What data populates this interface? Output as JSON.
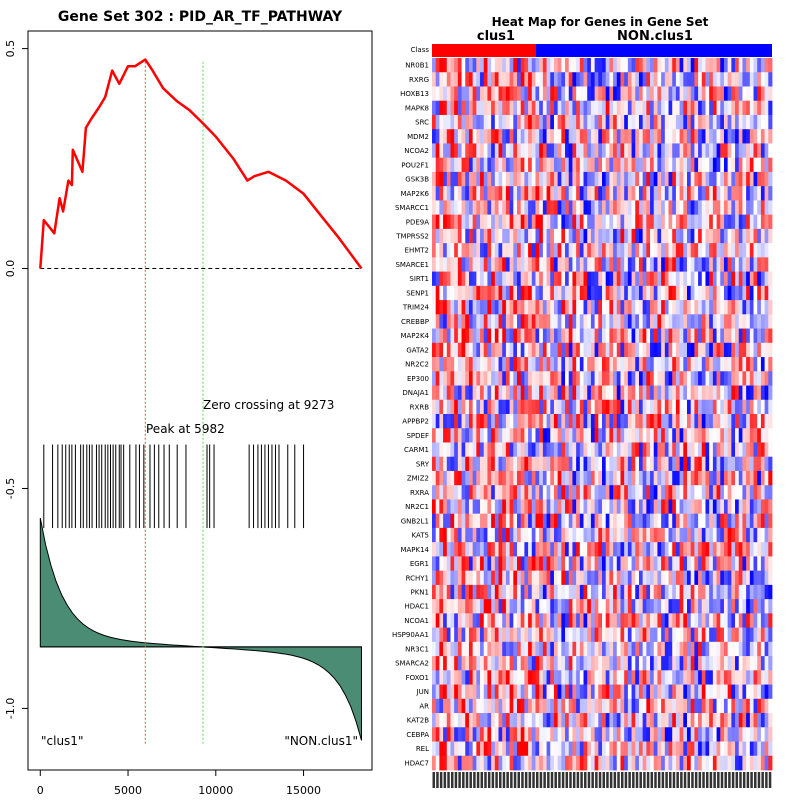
{
  "colors": {
    "es_line": "#ff0000",
    "peak_line": "#e04a4a",
    "zero_line": "#55dd55",
    "metric_fill": "#4a8c74",
    "class_clus1": "#ff0000",
    "class_non": "#0000ff",
    "hm_red": "#ff0000",
    "hm_blue": "#0000ff"
  },
  "chart_data": [
    {
      "type": "line",
      "title": "Gene Set  302 : PID_AR_TF_PATHWAY",
      "x_ticks": [
        0,
        5000,
        10000,
        15000
      ],
      "x_tick_labels": [
        "0",
        "5000",
        "10000",
        "15000"
      ],
      "y_ticks": [
        0.5,
        0.0,
        -0.5,
        -1.0
      ],
      "y_tick_labels": [
        "0.5",
        "0.0",
        "-0.5",
        "-1.0"
      ],
      "xlim": [
        -700,
        18900
      ],
      "ylim": [
        -1.14,
        0.54
      ],
      "es_points": [
        [
          0,
          0
        ],
        [
          200,
          0.11
        ],
        [
          800,
          0.08
        ],
        [
          1100,
          0.16
        ],
        [
          1300,
          0.13
        ],
        [
          1600,
          0.2
        ],
        [
          1800,
          0.19
        ],
        [
          1850,
          0.27
        ],
        [
          2400,
          0.22
        ],
        [
          2600,
          0.32
        ],
        [
          2900,
          0.34
        ],
        [
          3400,
          0.37
        ],
        [
          3700,
          0.39
        ],
        [
          4100,
          0.45
        ],
        [
          4500,
          0.42
        ],
        [
          5000,
          0.46
        ],
        [
          5400,
          0.46
        ],
        [
          5982,
          0.475
        ],
        [
          6400,
          0.45
        ],
        [
          7000,
          0.41
        ],
        [
          7800,
          0.38
        ],
        [
          8500,
          0.36
        ],
        [
          9273,
          0.33
        ],
        [
          10000,
          0.3
        ],
        [
          11000,
          0.25
        ],
        [
          11800,
          0.2
        ],
        [
          12200,
          0.21
        ],
        [
          13000,
          0.22
        ],
        [
          14000,
          0.2
        ],
        [
          15000,
          0.17
        ],
        [
          16000,
          0.12
        ],
        [
          17000,
          0.07
        ],
        [
          18300,
          0
        ]
      ],
      "peak": {
        "x": 5982,
        "label": "Peak at 5982"
      },
      "zero_crossing": {
        "x": 9273,
        "label": "Zero crossing at 9273"
      },
      "hits": [
        200,
        700,
        1000,
        1250,
        1450,
        1650,
        1800,
        2000,
        2300,
        2450,
        2650,
        2800,
        2950,
        3200,
        3350,
        3500,
        3700,
        3850,
        4000,
        4150,
        4300,
        4500,
        4600,
        4750,
        5100,
        5450,
        5650,
        5900,
        6250,
        6500,
        6750,
        7050,
        7350,
        7800,
        8300,
        9500,
        9650,
        9900,
        11900,
        12150,
        12400,
        12600,
        12800,
        13000,
        13200,
        13400,
        13600,
        14100,
        14500,
        15000
      ],
      "hits_y_range": [
        -0.4,
        -0.59
      ],
      "metric_top": -0.59,
      "metric_baseline": -0.86,
      "metric_bottom": -1.05,
      "n_genes": 18300,
      "left_label": "\"clus1\"",
      "right_label": "\"NON.clus1\""
    },
    {
      "type": "heatmap",
      "title": "Heat Map for Genes in Gene Set",
      "class_row_label": "Class",
      "class_labels": [
        "clus1",
        "NON.clus1"
      ],
      "n_clus1_columns": 30,
      "n_columns": 92,
      "genes": [
        "NR0B1",
        "RXRG",
        "HOXB13",
        "MAPK8",
        "SRC",
        "MDM2",
        "NCOA2",
        "POU2F1",
        "GSK3B",
        "MAP2K6",
        "SMARCC1",
        "PDE9A",
        "TMPRSS2",
        "EHMT2",
        "SMARCE1",
        "SIRT1",
        "SENP1",
        "TRIM24",
        "CREBBP",
        "MAP2K4",
        "GATA2",
        "NR2C2",
        "EP300",
        "DNAJA1",
        "RXRB",
        "APPBP2",
        "SPDEF",
        "CARM1",
        "SRY",
        "ZMIZ2",
        "RXRA",
        "NR2C1",
        "GNB2L1",
        "KAT5",
        "MAPK14",
        "EGR1",
        "RCHY1",
        "PKN1",
        "HDAC1",
        "NCOA1",
        "HSP90AA1",
        "NR3C1",
        "SMARCA2",
        "FOXO1",
        "JUN",
        "AR",
        "KAT2B",
        "CEBPA",
        "REL",
        "HDAC7"
      ]
    }
  ]
}
